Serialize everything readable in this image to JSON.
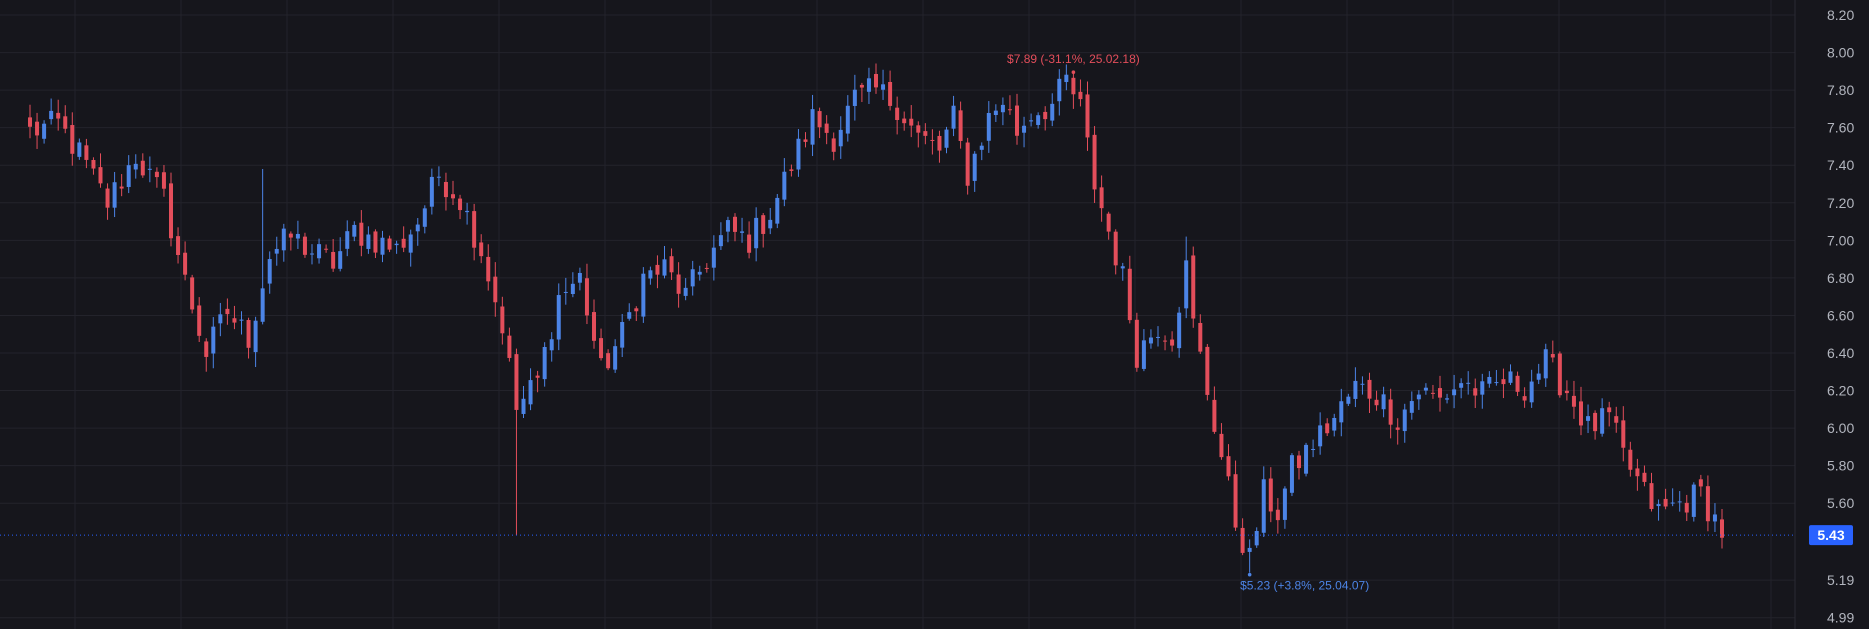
{
  "chart_data": {
    "type": "candlestick",
    "y_axis": {
      "position": "right",
      "ylim": [
        4.93,
        8.28
      ],
      "ticks": [
        8.2,
        8.0,
        7.8,
        7.6,
        7.4,
        7.2,
        7.0,
        6.8,
        6.6,
        6.4,
        6.2,
        6.0,
        5.8,
        5.6,
        5.19,
        4.99
      ],
      "tick_labels": [
        "8.20",
        "8.00",
        "7.80",
        "7.60",
        "7.40",
        "7.20",
        "7.00",
        "6.80",
        "6.60",
        "6.40",
        "6.20",
        "6.00",
        "5.80",
        "5.60",
        "5.19",
        "4.99"
      ]
    },
    "grid": true,
    "colors": {
      "background": "#16161c",
      "grid": "#23232b",
      "up": "#4c84e6",
      "down": "#e34e5b",
      "last_price_badge": "#2962ff",
      "axis_text": "#b2b5be"
    },
    "anchors": [
      {
        "i": 0,
        "p": 7.58
      },
      {
        "i": 4,
        "p": 7.62
      },
      {
        "i": 7,
        "p": 7.46
      },
      {
        "i": 11,
        "p": 7.2
      },
      {
        "i": 15,
        "p": 7.45
      },
      {
        "i": 19,
        "p": 7.22
      },
      {
        "i": 22,
        "p": 6.78
      },
      {
        "i": 25,
        "p": 6.4
      },
      {
        "i": 28,
        "p": 6.62
      },
      {
        "i": 31,
        "p": 6.48
      },
      {
        "i": 34,
        "p": 6.92
      },
      {
        "i": 37,
        "p": 7.02
      },
      {
        "i": 40,
        "p": 6.94
      },
      {
        "i": 43,
        "p": 6.88
      },
      {
        "i": 46,
        "p": 7.05
      },
      {
        "i": 49,
        "p": 7.0
      },
      {
        "i": 52,
        "p": 6.95
      },
      {
        "i": 55,
        "p": 7.1
      },
      {
        "i": 58,
        "p": 7.35
      },
      {
        "i": 61,
        "p": 7.22
      },
      {
        "i": 64,
        "p": 6.95
      },
      {
        "i": 67,
        "p": 6.55
      },
      {
        "i": 69,
        "p": 6.1
      },
      {
        "i": 72,
        "p": 6.25
      },
      {
        "i": 75,
        "p": 6.7
      },
      {
        "i": 78,
        "p": 6.8
      },
      {
        "i": 81,
        "p": 6.3
      },
      {
        "i": 84,
        "p": 6.5
      },
      {
        "i": 87,
        "p": 6.8
      },
      {
        "i": 90,
        "p": 6.85
      },
      {
        "i": 93,
        "p": 6.7
      },
      {
        "i": 96,
        "p": 6.9
      },
      {
        "i": 99,
        "p": 7.05
      },
      {
        "i": 102,
        "p": 7.0
      },
      {
        "i": 105,
        "p": 7.15
      },
      {
        "i": 108,
        "p": 7.4
      },
      {
        "i": 111,
        "p": 7.65
      },
      {
        "i": 114,
        "p": 7.55
      },
      {
        "i": 117,
        "p": 7.75
      },
      {
        "i": 120,
        "p": 7.8
      },
      {
        "i": 123,
        "p": 7.72
      },
      {
        "i": 126,
        "p": 7.55
      },
      {
        "i": 129,
        "p": 7.48
      },
      {
        "i": 131,
        "p": 7.65
      },
      {
        "i": 133,
        "p": 7.35
      },
      {
        "i": 136,
        "p": 7.65
      },
      {
        "i": 138,
        "p": 7.75
      },
      {
        "i": 140,
        "p": 7.58
      },
      {
        "i": 142,
        "p": 7.68
      },
      {
        "i": 145,
        "p": 7.72
      },
      {
        "i": 147,
        "p": 7.85
      },
      {
        "i": 149,
        "p": 7.7
      },
      {
        "i": 151,
        "p": 7.3
      },
      {
        "i": 153,
        "p": 7.05
      },
      {
        "i": 155,
        "p": 6.8
      },
      {
        "i": 157,
        "p": 6.4
      },
      {
        "i": 160,
        "p": 6.55
      },
      {
        "i": 162,
        "p": 6.5
      },
      {
        "i": 164,
        "p": 6.85
      },
      {
        "i": 165,
        "p": 6.55
      },
      {
        "i": 167,
        "p": 6.2
      },
      {
        "i": 169,
        "p": 5.85
      },
      {
        "i": 171,
        "p": 5.5
      },
      {
        "i": 173,
        "p": 5.3
      },
      {
        "i": 175,
        "p": 5.65
      },
      {
        "i": 177,
        "p": 5.55
      },
      {
        "i": 179,
        "p": 5.78
      },
      {
        "i": 182,
        "p": 5.92
      },
      {
        "i": 185,
        "p": 6.05
      },
      {
        "i": 188,
        "p": 6.22
      },
      {
        "i": 191,
        "p": 6.18
      },
      {
        "i": 194,
        "p": 6.05
      },
      {
        "i": 197,
        "p": 6.2
      },
      {
        "i": 200,
        "p": 6.15
      },
      {
        "i": 203,
        "p": 6.25
      },
      {
        "i": 206,
        "p": 6.18
      },
      {
        "i": 209,
        "p": 6.25
      },
      {
        "i": 212,
        "p": 6.22
      },
      {
        "i": 215,
        "p": 6.35
      },
      {
        "i": 218,
        "p": 6.2
      },
      {
        "i": 221,
        "p": 6.0
      },
      {
        "i": 224,
        "p": 6.05
      },
      {
        "i": 226,
        "p": 5.85
      },
      {
        "i": 229,
        "p": 5.65
      },
      {
        "i": 231,
        "p": 5.55
      },
      {
        "i": 234,
        "p": 5.6
      },
      {
        "i": 237,
        "p": 5.65
      },
      {
        "i": 238,
        "p": 5.58
      },
      {
        "i": 240,
        "p": 5.45
      }
    ],
    "candle_count": 241,
    "candle_spacing_note": "",
    "range_high": {
      "index": 148,
      "price": 7.89,
      "label": "$7.89 (-31.1%, 25.02.18)"
    },
    "range_low": {
      "index": 173,
      "price": 5.23,
      "label": "$5.23 (+3.8%, 25.04.07)"
    },
    "spikes": [
      {
        "index": 69,
        "low": 5.43
      },
      {
        "index": 33,
        "high": 7.38
      },
      {
        "index": 164,
        "high": 7.02
      }
    ],
    "last_price": {
      "value": 5.43,
      "label": "5.43"
    }
  }
}
